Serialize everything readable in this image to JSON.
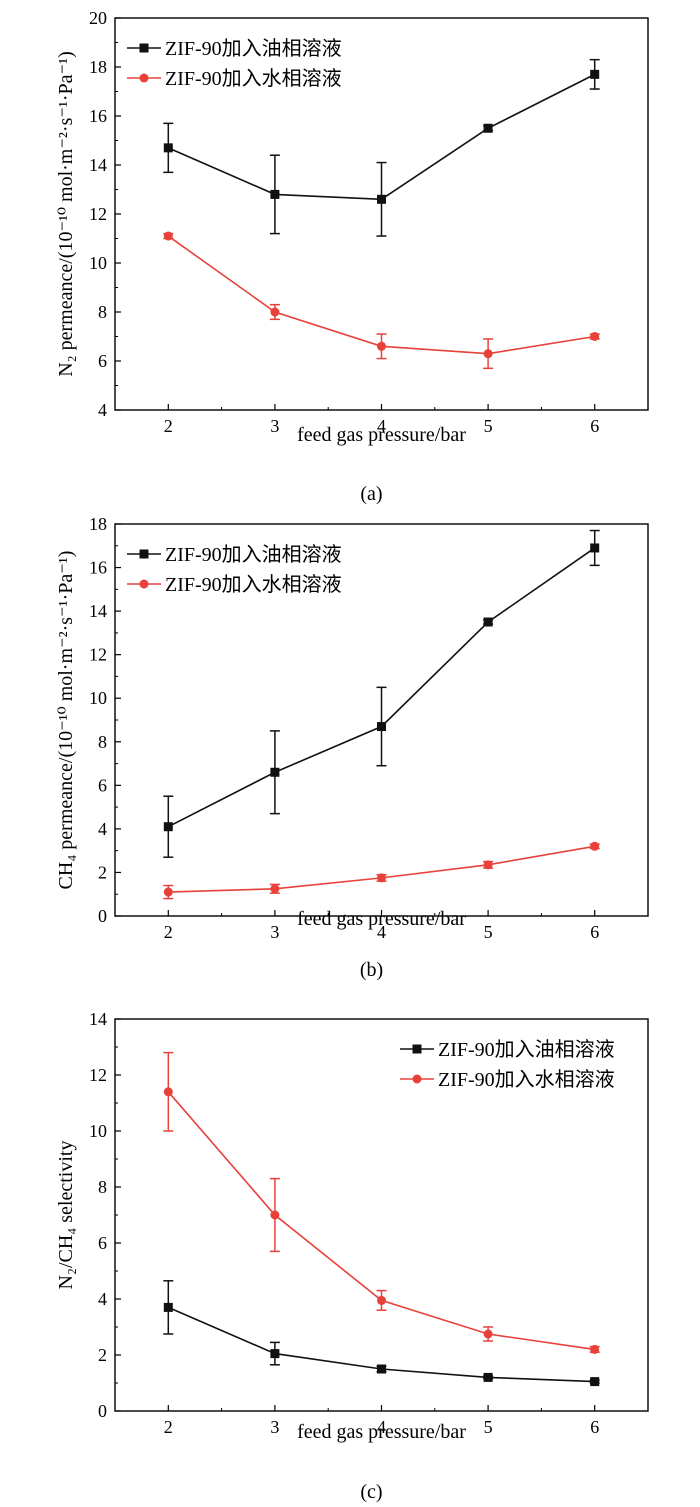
{
  "figure": {
    "panels": [
      "panel_a",
      "panel_b",
      "panel_c"
    ]
  },
  "colors": {
    "oil": "#111111",
    "water": "#e8413a"
  },
  "chart_data": [
    {
      "id": "panel_a",
      "type": "line",
      "caption": "(a)",
      "xlabel": "feed gas pressure/bar",
      "ylabel": "N₂ permeance/(10⁻¹⁰ mol·m⁻²·s⁻¹·Pa⁻¹)",
      "xlim": [
        1.5,
        6.5
      ],
      "ylim": [
        4,
        20
      ],
      "xticks": [
        2,
        3,
        4,
        5,
        6
      ],
      "yticks": [
        4,
        6,
        8,
        10,
        12,
        14,
        16,
        18,
        20
      ],
      "legend_position": "top-left",
      "series": [
        {
          "name": "ZIF-90加入油相溶液",
          "color": "#111111",
          "marker": "square",
          "x": [
            2,
            3,
            4,
            5,
            6
          ],
          "y": [
            14.7,
            12.8,
            12.6,
            15.5,
            17.7
          ],
          "err": [
            1.0,
            1.6,
            1.5,
            0.1,
            0.6
          ]
        },
        {
          "name": "ZIF-90加入水相溶液",
          "color": "#e8413a",
          "marker": "circle",
          "x": [
            2,
            3,
            4,
            5,
            6
          ],
          "y": [
            11.1,
            8.0,
            6.6,
            6.3,
            7.0
          ],
          "err": [
            0.1,
            0.3,
            0.5,
            0.6,
            0.1
          ]
        }
      ]
    },
    {
      "id": "panel_b",
      "type": "line",
      "caption": "(b)",
      "xlabel": "feed gas pressure/bar",
      "ylabel": "CH₄ permeance/(10⁻¹⁰ mol·m⁻²·s⁻¹·Pa⁻¹)",
      "xlim": [
        1.5,
        6.5
      ],
      "ylim": [
        0,
        18
      ],
      "xticks": [
        2,
        3,
        4,
        5,
        6
      ],
      "yticks": [
        0,
        2,
        4,
        6,
        8,
        10,
        12,
        14,
        16,
        18
      ],
      "legend_position": "top-left",
      "series": [
        {
          "name": "ZIF-90加入油相溶液",
          "color": "#111111",
          "marker": "square",
          "x": [
            2,
            3,
            4,
            5,
            6
          ],
          "y": [
            4.1,
            6.6,
            8.7,
            13.5,
            16.9
          ],
          "err": [
            1.4,
            1.9,
            1.8,
            0.1,
            0.8
          ]
        },
        {
          "name": "ZIF-90加入水相溶液",
          "color": "#e8413a",
          "marker": "circle",
          "x": [
            2,
            3,
            4,
            5,
            6
          ],
          "y": [
            1.1,
            1.25,
            1.75,
            2.35,
            3.2
          ],
          "err": [
            0.3,
            0.2,
            0.15,
            0.15,
            0.1
          ]
        }
      ]
    },
    {
      "id": "panel_c",
      "type": "line",
      "caption": "(c)",
      "xlabel": "feed gas pressure/bar",
      "ylabel": "N₂/CH₄ selectivity",
      "xlim": [
        1.5,
        6.5
      ],
      "ylim": [
        0,
        14
      ],
      "xticks": [
        2,
        3,
        4,
        5,
        6
      ],
      "yticks": [
        0,
        2,
        4,
        6,
        8,
        10,
        12,
        14
      ],
      "legend_position": "top-right",
      "series": [
        {
          "name": "ZIF-90加入油相溶液",
          "color": "#111111",
          "marker": "square",
          "x": [
            2,
            3,
            4,
            5,
            6
          ],
          "y": [
            3.7,
            2.05,
            1.5,
            1.2,
            1.05
          ],
          "err": [
            0.95,
            0.4,
            0.1,
            0.05,
            0.05
          ]
        },
        {
          "name": "ZIF-90加入水相溶液",
          "color": "#e8413a",
          "marker": "circle",
          "x": [
            2,
            3,
            4,
            5,
            6
          ],
          "y": [
            11.4,
            7.0,
            3.95,
            2.75,
            2.2
          ],
          "err": [
            1.4,
            1.3,
            0.35,
            0.25,
            0.1
          ]
        }
      ]
    }
  ]
}
